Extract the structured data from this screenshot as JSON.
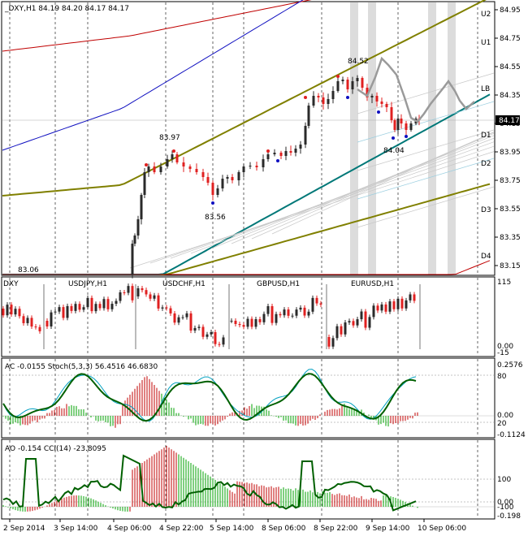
{
  "main": {
    "header": "_DXY,H1  84.19 84.20 84.17 84.17",
    "price_ticks": [
      "84.95",
      "84.75",
      "84.55",
      "84.35",
      "84.15",
      "83.95",
      "83.75",
      "83.55",
      "83.35",
      "83.15"
    ],
    "level_labels": [
      "U2",
      "U1",
      "LB",
      "D1",
      "D2",
      "D3",
      "D4"
    ],
    "current_price": "84.17",
    "annotations": [
      "84.52",
      "83.97",
      "83.56",
      "84.04",
      "83.06"
    ]
  },
  "multi": {
    "labels": [
      "DXY",
      "USDJPY,H1",
      "USDCHF,H1",
      "GBPUSD,H1",
      "EURUSD,H1"
    ],
    "ticks": [
      "115",
      "0.00",
      "-15"
    ]
  },
  "ac": {
    "header": "AC -0.0155  Stoch(5,3,3) 56.4516 46.6830",
    "ticks": [
      "0.2576",
      "80",
      "0.00",
      "20",
      "-0.1124"
    ]
  },
  "ao": {
    "header": "AO -0.154  CCI(14) -23.8095",
    "ticks": [
      "100",
      "0.00",
      "-100",
      "-0.198"
    ]
  },
  "time_axis": [
    "2 Sep 2014",
    "3 Sep 14:00",
    "4 Sep 06:00",
    "4 Sep 22:00",
    "5 Sep 14:00",
    "8 Sep 06:00",
    "8 Sep 22:00",
    "9 Sep 14:00",
    "10 Sep 06:00"
  ],
  "colors": {
    "bull": "#2a2a2a",
    "bear": "#e02020",
    "blue_band": "#1010c0",
    "red_band": "#c00000",
    "olive": "#808000",
    "teal": "#007878",
    "stoch": "#006000",
    "stoch_signal": "#00a0c0",
    "hist_green": "#00a000",
    "hist_red": "#c00000"
  }
}
